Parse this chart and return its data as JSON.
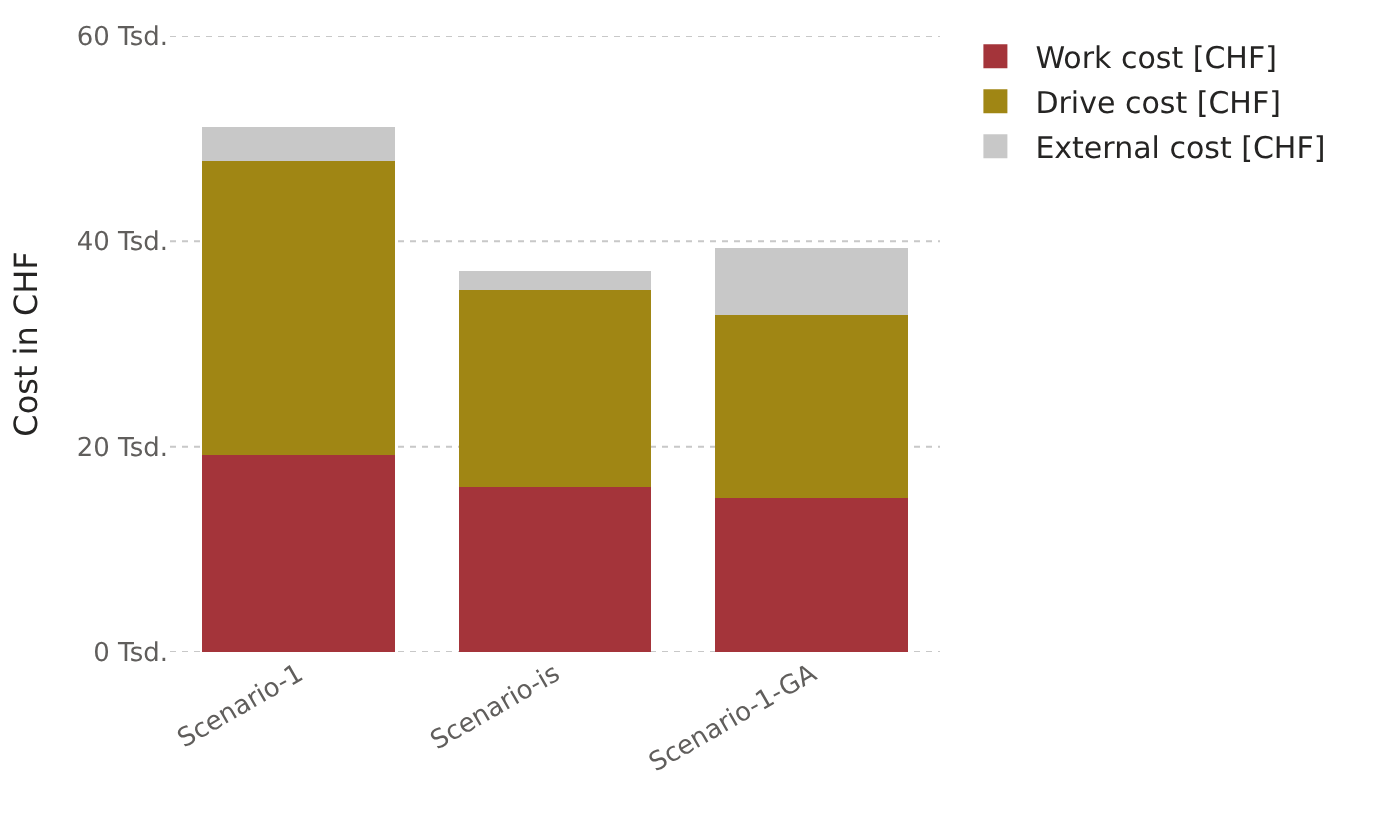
{
  "chart_data": {
    "type": "bar",
    "stacked": true,
    "ylabel": "Cost in CHF",
    "categories": [
      "Scenario-1",
      "Scenario-is",
      "Scenario-1-GA"
    ],
    "series": [
      {
        "name": "Work cost [CHF]",
        "color": "#a4343a",
        "values": [
          19.2,
          16.1,
          15.0
        ]
      },
      {
        "name": "Drive cost [CHF]",
        "color": "#a08614",
        "values": [
          28.6,
          19.2,
          17.8
        ]
      },
      {
        "name": "External cost [CHF]",
        "color": "#c8c8c8",
        "values": [
          3.3,
          1.8,
          6.6
        ]
      }
    ],
    "ylim": [
      0,
      60
    ],
    "yticks": [
      {
        "value": 0,
        "label": "0 Tsd."
      },
      {
        "value": 20,
        "label": "20 Tsd."
      },
      {
        "value": 40,
        "label": "40 Tsd."
      },
      {
        "value": 60,
        "label": "60 Tsd."
      }
    ],
    "grid": "y",
    "legend": "top right"
  }
}
